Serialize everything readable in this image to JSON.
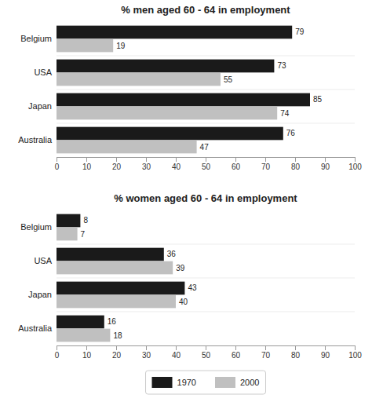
{
  "chart_data": [
    {
      "type": "bar",
      "orientation": "horizontal",
      "title": "% men aged 60 - 64 in employment",
      "categories": [
        "Australia",
        "Japan",
        "USA",
        "Belgium"
      ],
      "series": [
        {
          "name": "1970",
          "color": "#1a1a1a",
          "values": [
            76,
            85,
            73,
            79
          ]
        },
        {
          "name": "2000",
          "color": "#c0c0c0",
          "values": [
            47,
            74,
            55,
            19
          ]
        }
      ],
      "xlim": [
        0,
        100
      ],
      "xticks": [
        0,
        10,
        20,
        30,
        40,
        50,
        60,
        70,
        80,
        90,
        100
      ],
      "grid": false,
      "data_labels": true
    },
    {
      "type": "bar",
      "orientation": "horizontal",
      "title": "% women aged 60 - 64 in employment",
      "categories": [
        "Australia",
        "Japan",
        "USA",
        "Belgium"
      ],
      "series": [
        {
          "name": "1970",
          "color": "#1a1a1a",
          "values": [
            16,
            43,
            36,
            8
          ]
        },
        {
          "name": "2000",
          "color": "#c0c0c0",
          "values": [
            18,
            40,
            39,
            7
          ]
        }
      ],
      "xlim": [
        0,
        100
      ],
      "xticks": [
        0,
        10,
        20,
        30,
        40,
        50,
        60,
        70,
        80,
        90,
        100
      ],
      "grid": false,
      "data_labels": true,
      "legend": "bottom"
    }
  ]
}
